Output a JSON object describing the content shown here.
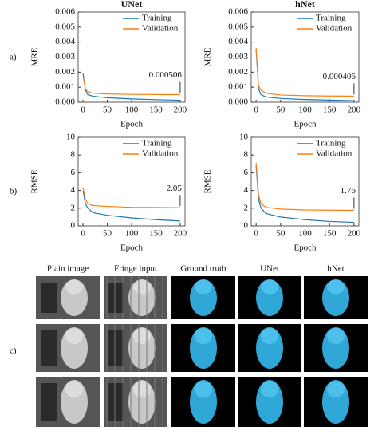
{
  "chart_data": [
    {
      "type": "line",
      "title": "UNet",
      "ylabel": "MRE",
      "xlabel": "Epoch",
      "x": [
        0,
        5,
        10,
        20,
        50,
        100,
        150,
        200
      ],
      "series": [
        {
          "name": "Training",
          "color": "#1f77b4",
          "values": [
            0.0019,
            0.0008,
            0.0005,
            0.0004,
            0.0003,
            0.00022,
            0.00017,
            0.00013
          ]
        },
        {
          "name": "Validation",
          "color": "#ff7f0e",
          "values": [
            0.0017,
            0.0009,
            0.0007,
            0.0006,
            0.00055,
            0.00052,
            0.00051,
            0.000506
          ]
        }
      ],
      "xlim": [
        -10,
        210
      ],
      "xticks": [
        0,
        50,
        100,
        150,
        200
      ],
      "ylim": [
        0,
        0.006
      ],
      "yticks": [
        {
          "value": 0,
          "label": "0.000"
        },
        {
          "value": 0.001,
          "label": "0.001"
        },
        {
          "value": 0.002,
          "label": "0.002"
        },
        {
          "value": 0.003,
          "label": "0.003"
        },
        {
          "value": 0.004,
          "label": "0.004"
        },
        {
          "value": 0.005,
          "label": "0.005"
        },
        {
          "value": 0.006,
          "label": "0.006"
        }
      ],
      "legend": "upper right",
      "annotation": {
        "x": 200,
        "value": 0.000506,
        "label": "0.000506"
      }
    },
    {
      "type": "line",
      "title": "hNet",
      "ylabel": "MRE",
      "xlabel": "Epoch",
      "x": [
        0,
        5,
        10,
        20,
        50,
        100,
        150,
        200
      ],
      "series": [
        {
          "name": "Training",
          "color": "#1f77b4",
          "values": [
            0.0035,
            0.0009,
            0.0005,
            0.00035,
            0.00025,
            0.00018,
            0.00014,
            0.0001
          ]
        },
        {
          "name": "Validation",
          "color": "#ff7f0e",
          "values": [
            0.0036,
            0.0011,
            0.0008,
            0.0006,
            0.00048,
            0.00043,
            0.00041,
            0.000406
          ]
        }
      ],
      "xlim": [
        -10,
        210
      ],
      "xticks": [
        0,
        50,
        100,
        150,
        200
      ],
      "ylim": [
        0,
        0.006
      ],
      "yticks": [
        {
          "value": 0,
          "label": "0.000"
        },
        {
          "value": 0.001,
          "label": "0.001"
        },
        {
          "value": 0.002,
          "label": "0.002"
        },
        {
          "value": 0.003,
          "label": "0.003"
        },
        {
          "value": 0.004,
          "label": "0.004"
        },
        {
          "value": 0.005,
          "label": "0.005"
        },
        {
          "value": 0.006,
          "label": "0.006"
        }
      ],
      "legend": "upper right",
      "annotation": {
        "x": 200,
        "value": 0.000406,
        "label": "0.000406"
      }
    },
    {
      "type": "line",
      "ylabel": "RMSE",
      "xlabel": "Epoch",
      "x": [
        0,
        5,
        10,
        20,
        50,
        100,
        150,
        200
      ],
      "series": [
        {
          "name": "Training",
          "color": "#1f77b4",
          "values": [
            4.0,
            2.5,
            2.0,
            1.5,
            1.2,
            0.9,
            0.7,
            0.55
          ]
        },
        {
          "name": "Validation",
          "color": "#ff7f0e",
          "values": [
            4.3,
            3.0,
            2.5,
            2.3,
            2.2,
            2.1,
            2.08,
            2.05
          ]
        }
      ],
      "xlim": [
        -10,
        210
      ],
      "xticks": [
        0,
        50,
        100,
        150,
        200
      ],
      "ylim": [
        0,
        10
      ],
      "yticks": [
        0,
        2,
        4,
        6,
        8,
        10
      ],
      "legend": "upper right",
      "annotation": {
        "x": 200,
        "value": 2.05,
        "label": "2.05"
      }
    },
    {
      "type": "line",
      "ylabel": "RMSE",
      "xlabel": "Epoch",
      "x": [
        0,
        5,
        10,
        20,
        50,
        100,
        150,
        200
      ],
      "series": [
        {
          "name": "Training",
          "color": "#1f77b4",
          "values": [
            6.8,
            3.0,
            2.0,
            1.4,
            1.0,
            0.7,
            0.5,
            0.4
          ]
        },
        {
          "name": "Validation",
          "color": "#ff7f0e",
          "values": [
            7.1,
            3.5,
            2.5,
            2.1,
            1.9,
            1.8,
            1.78,
            1.76
          ]
        }
      ],
      "xlim": [
        -10,
        210
      ],
      "xticks": [
        0,
        50,
        100,
        150,
        200
      ],
      "ylim": [
        0,
        10
      ],
      "yticks": [
        0,
        2,
        4,
        6,
        8,
        10
      ],
      "legend": "upper right",
      "annotation": {
        "x": 200,
        "value": 1.76,
        "label": "1.76"
      }
    }
  ],
  "panel_labels": [
    "a)",
    "b)",
    "c)"
  ],
  "image_grid": {
    "columns": [
      "Plain image",
      "Fringe input",
      "Ground truth",
      "UNet",
      "hNet"
    ]
  }
}
